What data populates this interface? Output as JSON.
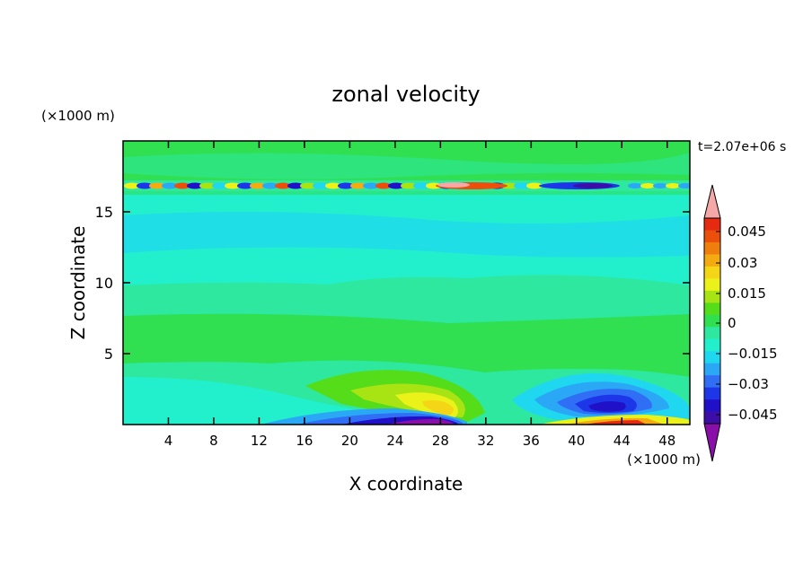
{
  "chart_data": {
    "type": "heatmap",
    "title": "zonal velocity",
    "xlabel": "X coordinate",
    "ylabel": "Z coordinate",
    "x_unit": "(×1000 m)",
    "y_unit": "(×1000 m)",
    "time_label": "t=2.07e+06 s",
    "xlim": [
      0,
      50
    ],
    "ylim": [
      0,
      20
    ],
    "x_ticks": [
      "4",
      "8",
      "12",
      "16",
      "20",
      "24",
      "28",
      "32",
      "36",
      "40",
      "44",
      "48"
    ],
    "y_ticks": [
      "5",
      "10",
      "15"
    ],
    "colorbar": {
      "tick_labels": [
        "0.045",
        "0.03",
        "0.015",
        "0",
        "−0.015",
        "−0.03",
        "−0.045"
      ],
      "colors": [
        "#8a0fa8",
        "#3d0da8",
        "#2010c8",
        "#1c36e8",
        "#2f6ef5",
        "#2aa8f6",
        "#1fd8ef",
        "#22f0cc",
        "#2ee8a0",
        "#30e050",
        "#55dd1a",
        "#a8e414",
        "#eaf21a",
        "#f5d616",
        "#f4ab12",
        "#f07e0d",
        "#ec4e0c",
        "#e62a12",
        "#f4a8a8"
      ],
      "extend": "both"
    },
    "levels": [
      -0.05,
      -0.045,
      -0.04,
      -0.035,
      -0.03,
      -0.025,
      -0.02,
      -0.015,
      -0.01,
      -0.005,
      0,
      0.005,
      0.01,
      0.015,
      0.02,
      0.025,
      0.03,
      0.035,
      0.04,
      0.045,
      0.05
    ],
    "description_values": {
      "upper_band": {
        "z": 17,
        "min": -0.045,
        "max": 0.045
      },
      "near_surface_positive_max": {
        "x": 27,
        "z": 1.5,
        "value": 0.025
      },
      "near_surface_negative_min": {
        "x": 40,
        "z": 1.2,
        "value": -0.045
      },
      "bottom_negative_min": {
        "x": 25,
        "z": 0.3,
        "value": -0.05
      }
    }
  }
}
